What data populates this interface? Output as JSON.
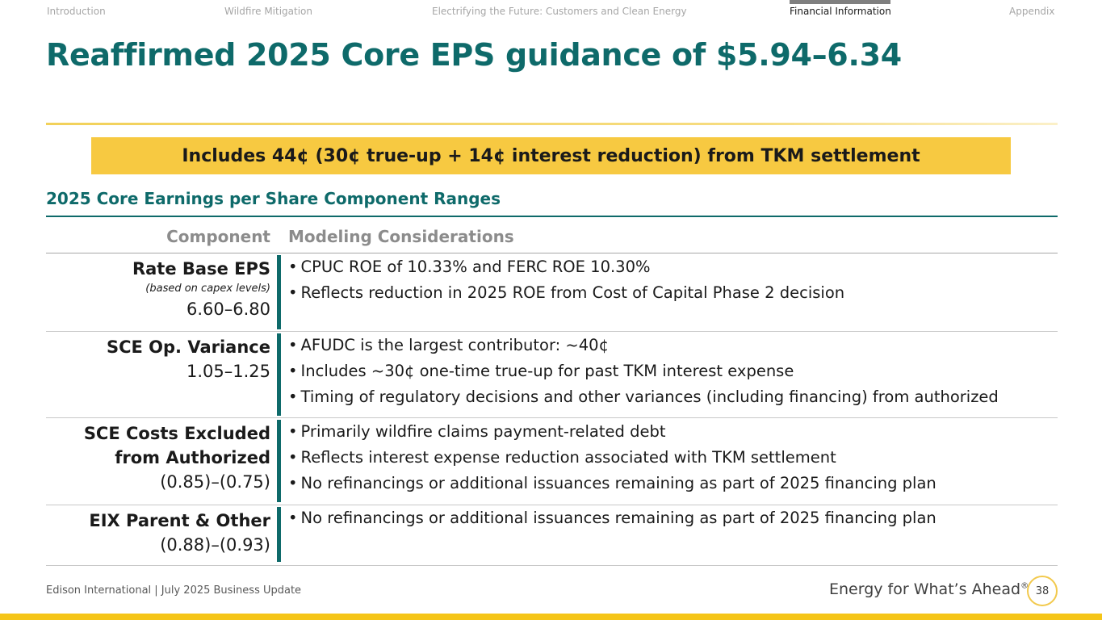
{
  "nav": {
    "items": [
      {
        "label": "Introduction"
      },
      {
        "label": "Wildfire Mitigation"
      },
      {
        "label": "Electrifying the Future: Customers and Clean Energy"
      },
      {
        "label": "Financial Information"
      },
      {
        "label": "Appendix"
      }
    ],
    "active": "Financial Information"
  },
  "title": "Reaffirmed 2025 Core EPS guidance of $5.94–6.34",
  "banner": "Includes 44¢ (30¢ true-up + 14¢ interest reduction) from TKM settlement",
  "section_heading": "2025 Core Earnings per Share Component Ranges",
  "table": {
    "headers": {
      "component": "Component",
      "modeling": "Modeling Considerations"
    },
    "rows": [
      {
        "name_lines": [
          "Rate Base EPS"
        ],
        "note": "(based on capex levels)",
        "range": "6.60–6.80",
        "bullets": [
          "CPUC ROE of 10.33% and FERC ROE 10.30%",
          "Reflects reduction in 2025 ROE from Cost of Capital Phase 2 decision"
        ]
      },
      {
        "name_lines": [
          "SCE Op. Variance"
        ],
        "range": "1.05–1.25",
        "bullets": [
          "AFUDC is the largest contributor: ~40¢",
          "Includes ~30¢ one-time true-up for past TKM interest expense",
          "Timing of regulatory decisions and other variances (including financing) from authorized"
        ]
      },
      {
        "name_lines": [
          "SCE Costs Excluded",
          "from Authorized"
        ],
        "range": "(0.85)–(0.75)",
        "bullets": [
          "Primarily wildfire claims payment-related debt",
          "Reflects interest expense reduction associated with TKM settlement",
          "No refinancings or additional issuances remaining as part of 2025 financing plan"
        ]
      },
      {
        "name_lines": [
          "EIX Parent & Other"
        ],
        "range": "(0.88)–(0.93)",
        "bullets": [
          "No refinancings or additional issuances remaining as part of 2025 financing plan"
        ]
      }
    ]
  },
  "footer": {
    "left": "Edison International |  July 2025 Business Update",
    "tagline": "Energy for What’s Ahead",
    "tagline_mark": "®",
    "page_number": "38"
  },
  "colors": {
    "teal": "#0e6a6a",
    "banner_yellow": "#f7c941",
    "bottom_bar": "#f5c518"
  }
}
